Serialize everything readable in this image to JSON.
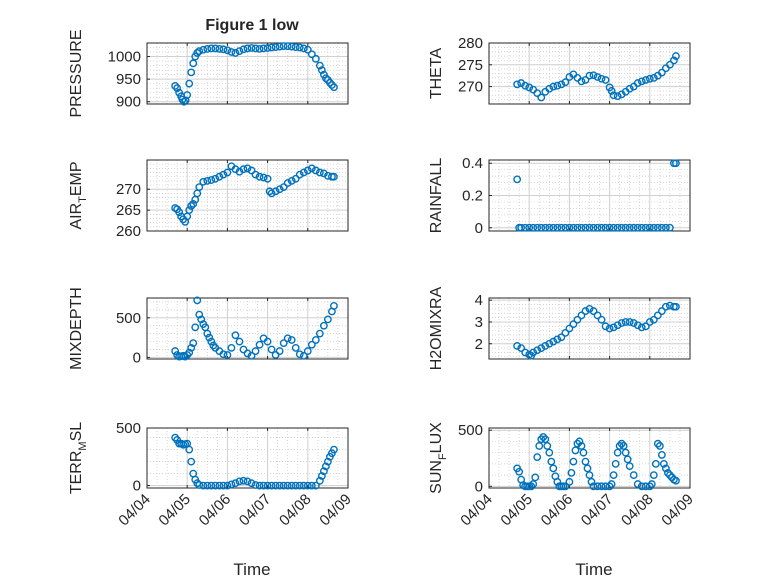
{
  "figure": {
    "title": "Figure 1 low",
    "xlabel": "Time",
    "xticks": [
      "04/04",
      "04/05",
      "04/06",
      "04/07",
      "04/08",
      "04/09"
    ],
    "marker_color": "#0072BD",
    "grid_color": "#c8c8c8"
  },
  "chart_data": [
    {
      "type": "scatter",
      "ylabel": "PRESSURE",
      "ylim": [
        895,
        1030
      ],
      "yticks": [
        900,
        950,
        1000
      ],
      "x": [
        0.7,
        0.75,
        0.8,
        0.85,
        0.88,
        0.92,
        0.96,
        1.0,
        1.05,
        1.1,
        1.15,
        1.2,
        1.25,
        1.3,
        1.4,
        1.5,
        1.6,
        1.7,
        1.8,
        1.9,
        2.0,
        2.1,
        2.2,
        2.3,
        2.4,
        2.5,
        2.6,
        2.7,
        2.8,
        2.9,
        3.0,
        3.1,
        3.2,
        3.3,
        3.4,
        3.5,
        3.6,
        3.7,
        3.8,
        3.9,
        4.0,
        4.1,
        4.2,
        4.3,
        4.35,
        4.4,
        4.45,
        4.5,
        4.55,
        4.6,
        4.65
      ],
      "y": [
        935,
        930,
        920,
        912,
        905,
        900,
        903,
        915,
        940,
        965,
        985,
        1000,
        1008,
        1012,
        1015,
        1017,
        1018,
        1018,
        1017,
        1016,
        1014,
        1010,
        1008,
        1012,
        1016,
        1018,
        1019,
        1018,
        1017,
        1018,
        1019,
        1020,
        1021,
        1022,
        1023,
        1023,
        1022,
        1021,
        1020,
        1018,
        1015,
        1005,
        995,
        980,
        970,
        960,
        952,
        948,
        942,
        937,
        932
      ]
    },
    {
      "type": "scatter",
      "ylabel": "THETA",
      "ylim": [
        266,
        280
      ],
      "yticks": [
        270,
        275,
        280
      ],
      "x": [
        0.7,
        0.8,
        0.9,
        1.0,
        1.1,
        1.2,
        1.3,
        1.4,
        1.5,
        1.6,
        1.7,
        1.8,
        1.9,
        2.0,
        2.1,
        2.2,
        2.3,
        2.4,
        2.5,
        2.6,
        2.7,
        2.8,
        2.9,
        3.0,
        3.05,
        3.1,
        3.2,
        3.3,
        3.4,
        3.5,
        3.6,
        3.7,
        3.8,
        3.9,
        4.0,
        4.1,
        4.2,
        4.3,
        4.4,
        4.5,
        4.6,
        4.65
      ],
      "y": [
        270.5,
        270.8,
        270.2,
        269.8,
        269.3,
        268.5,
        267.5,
        268.8,
        269.5,
        270.0,
        270.2,
        270.5,
        271.0,
        272.2,
        272.8,
        272.0,
        271.2,
        271.5,
        272.5,
        272.6,
        272.2,
        271.8,
        271.5,
        269.8,
        269.0,
        268.0,
        267.8,
        268.2,
        268.8,
        269.5,
        270.0,
        270.8,
        271.2,
        271.5,
        271.8,
        272.0,
        272.5,
        273.2,
        274.2,
        275.0,
        276.0,
        277.0
      ]
    },
    {
      "type": "scatter",
      "ylabel": "AIR_TEMP",
      "ylabel_main": "AIR",
      "ylabel_sub": "T",
      "ylabel_rest": "EMP",
      "ylim": [
        260,
        277
      ],
      "yticks": [
        260,
        265,
        270
      ],
      "x": [
        0.7,
        0.75,
        0.8,
        0.85,
        0.9,
        0.95,
        1.0,
        1.05,
        1.1,
        1.15,
        1.2,
        1.25,
        1.3,
        1.4,
        1.5,
        1.6,
        1.7,
        1.8,
        1.9,
        2.0,
        2.1,
        2.2,
        2.3,
        2.4,
        2.5,
        2.6,
        2.7,
        2.8,
        2.9,
        3.0,
        3.05,
        3.1,
        3.2,
        3.3,
        3.4,
        3.5,
        3.6,
        3.7,
        3.8,
        3.9,
        4.0,
        4.1,
        4.2,
        4.3,
        4.4,
        4.5,
        4.6,
        4.65
      ],
      "y": [
        265.5,
        265.2,
        264.5,
        263.5,
        262.8,
        262.2,
        263.5,
        265.0,
        266.0,
        266.5,
        267.5,
        269.0,
        270.5,
        271.8,
        272.0,
        272.2,
        272.5,
        273.0,
        273.5,
        274.0,
        275.5,
        274.8,
        274.2,
        274.8,
        275.0,
        274.5,
        273.5,
        273.0,
        272.8,
        272.5,
        269.5,
        269.0,
        269.5,
        270.0,
        270.5,
        271.5,
        272.0,
        272.5,
        273.5,
        274.0,
        274.5,
        275.0,
        274.5,
        274.0,
        273.8,
        273.2,
        273.0,
        273.0
      ]
    },
    {
      "type": "scatter",
      "ylabel": "RAINFALL",
      "ylim": [
        -0.02,
        0.42
      ],
      "yticks": [
        0,
        0.2,
        0.4
      ],
      "ytick_labels": [
        "0",
        "0.2",
        "0.4"
      ],
      "x": [
        0.7,
        0.75,
        0.8,
        0.9,
        1.0,
        1.1,
        1.2,
        1.3,
        1.4,
        1.5,
        1.6,
        1.7,
        1.8,
        1.9,
        2.0,
        2.1,
        2.2,
        2.3,
        2.4,
        2.5,
        2.6,
        2.7,
        2.8,
        2.9,
        3.0,
        3.1,
        3.2,
        3.3,
        3.4,
        3.5,
        3.6,
        3.7,
        3.8,
        3.9,
        4.0,
        4.1,
        4.2,
        4.3,
        4.4,
        4.5,
        4.6,
        4.65
      ],
      "y": [
        0.3,
        0,
        0,
        0,
        0,
        0,
        0,
        0,
        0,
        0,
        0,
        0,
        0,
        0,
        0,
        0,
        0,
        0,
        0,
        0,
        0,
        0,
        0,
        0,
        0,
        0,
        0,
        0,
        0,
        0,
        0,
        0,
        0,
        0,
        0,
        0,
        0,
        0,
        0,
        0,
        0.4,
        0.4
      ]
    },
    {
      "type": "scatter",
      "ylabel": "MIXDEPTH",
      "ylim": [
        -20,
        750
      ],
      "yticks": [
        0,
        500
      ],
      "x": [
        0.7,
        0.75,
        0.8,
        0.85,
        0.9,
        0.95,
        1.0,
        1.05,
        1.1,
        1.15,
        1.2,
        1.25,
        1.3,
        1.35,
        1.4,
        1.45,
        1.5,
        1.55,
        1.6,
        1.65,
        1.7,
        1.8,
        1.9,
        2.0,
        2.1,
        2.2,
        2.3,
        2.4,
        2.5,
        2.6,
        2.7,
        2.8,
        2.9,
        3.0,
        3.1,
        3.2,
        3.3,
        3.4,
        3.5,
        3.6,
        3.7,
        3.8,
        3.9,
        4.0,
        4.1,
        4.2,
        4.3,
        4.4,
        4.5,
        4.6,
        4.65
      ],
      "y": [
        80,
        30,
        10,
        15,
        20,
        10,
        30,
        60,
        120,
        180,
        380,
        720,
        540,
        480,
        420,
        380,
        300,
        250,
        200,
        150,
        120,
        80,
        40,
        30,
        120,
        280,
        200,
        100,
        50,
        20,
        80,
        160,
        240,
        200,
        100,
        30,
        80,
        180,
        240,
        220,
        120,
        40,
        20,
        80,
        160,
        220,
        300,
        400,
        480,
        580,
        650
      ]
    },
    {
      "type": "scatter",
      "ylabel": "H2OMIXRA",
      "ylim": [
        1.3,
        4.1
      ],
      "yticks": [
        2,
        3,
        4
      ],
      "x": [
        0.7,
        0.8,
        0.9,
        1.0,
        1.05,
        1.1,
        1.2,
        1.3,
        1.4,
        1.5,
        1.6,
        1.7,
        1.8,
        1.9,
        2.0,
        2.1,
        2.2,
        2.3,
        2.4,
        2.5,
        2.6,
        2.7,
        2.8,
        2.9,
        3.0,
        3.1,
        3.2,
        3.3,
        3.4,
        3.5,
        3.6,
        3.7,
        3.8,
        3.9,
        4.0,
        4.1,
        4.2,
        4.3,
        4.4,
        4.5,
        4.6,
        4.65
      ],
      "y": [
        1.9,
        1.8,
        1.6,
        1.5,
        1.45,
        1.6,
        1.7,
        1.8,
        1.9,
        2.0,
        2.1,
        2.2,
        2.3,
        2.5,
        2.7,
        2.9,
        3.1,
        3.3,
        3.5,
        3.6,
        3.5,
        3.3,
        3.1,
        2.8,
        2.7,
        2.75,
        2.85,
        2.95,
        3.0,
        3.0,
        2.95,
        2.85,
        2.75,
        2.8,
        3.0,
        3.1,
        3.3,
        3.5,
        3.7,
        3.75,
        3.7,
        3.7
      ]
    },
    {
      "type": "scatter",
      "ylabel": "TERR_MSL",
      "ylabel_main": "TERR",
      "ylabel_sub": "M",
      "ylabel_rest": "SL",
      "ylim": [
        -20,
        480
      ],
      "yticks": [
        0,
        500
      ],
      "x": [
        0.7,
        0.75,
        0.8,
        0.85,
        0.9,
        0.95,
        1.0,
        1.05,
        1.1,
        1.15,
        1.2,
        1.25,
        1.3,
        1.4,
        1.5,
        1.6,
        1.7,
        1.8,
        1.9,
        2.0,
        2.1,
        2.2,
        2.3,
        2.4,
        2.5,
        2.6,
        2.7,
        2.8,
        2.9,
        3.0,
        3.1,
        3.2,
        3.3,
        3.4,
        3.5,
        3.6,
        3.7,
        3.8,
        3.9,
        4.0,
        4.1,
        4.2,
        4.3,
        4.35,
        4.4,
        4.45,
        4.5,
        4.55,
        4.6,
        4.65
      ],
      "y": [
        400,
        380,
        350,
        350,
        340,
        345,
        350,
        300,
        200,
        100,
        50,
        20,
        5,
        0,
        0,
        0,
        0,
        0,
        0,
        0,
        10,
        20,
        35,
        40,
        35,
        20,
        5,
        0,
        0,
        0,
        0,
        0,
        0,
        0,
        0,
        0,
        0,
        0,
        0,
        0,
        0,
        0,
        40,
        80,
        120,
        160,
        200,
        240,
        270,
        300
      ]
    },
    {
      "type": "scatter",
      "ylabel": "SUN_FLUX",
      "ylabel_main": "SUN",
      "ylabel_sub": "F",
      "ylabel_rest": "LUX",
      "ylim": [
        -15,
        520
      ],
      "yticks": [
        0,
        500
      ],
      "x": [
        0.7,
        0.75,
        0.8,
        0.85,
        0.9,
        0.95,
        1.0,
        1.05,
        1.1,
        1.15,
        1.2,
        1.25,
        1.3,
        1.35,
        1.4,
        1.45,
        1.5,
        1.55,
        1.6,
        1.65,
        1.7,
        1.75,
        1.8,
        1.85,
        1.9,
        2.0,
        2.05,
        2.1,
        2.15,
        2.2,
        2.25,
        2.3,
        2.35,
        2.4,
        2.45,
        2.5,
        2.55,
        2.6,
        2.7,
        2.8,
        2.9,
        3.0,
        3.05,
        3.1,
        3.15,
        3.2,
        3.25,
        3.3,
        3.35,
        3.4,
        3.45,
        3.5,
        3.6,
        3.7,
        3.8,
        3.9,
        4.0,
        4.05,
        4.1,
        4.15,
        4.2,
        4.25,
        4.3,
        4.35,
        4.4,
        4.45,
        4.5,
        4.55,
        4.6,
        4.65
      ],
      "y": [
        160,
        130,
        60,
        10,
        0,
        0,
        0,
        0,
        20,
        80,
        260,
        360,
        420,
        440,
        420,
        360,
        300,
        220,
        160,
        90,
        40,
        0,
        0,
        0,
        0,
        40,
        120,
        220,
        320,
        380,
        400,
        360,
        300,
        220,
        160,
        100,
        40,
        0,
        0,
        0,
        0,
        0,
        20,
        100,
        200,
        300,
        360,
        380,
        360,
        300,
        240,
        180,
        100,
        20,
        0,
        0,
        0,
        20,
        100,
        200,
        380,
        360,
        280,
        200,
        160,
        120,
        100,
        80,
        60,
        50
      ]
    }
  ]
}
